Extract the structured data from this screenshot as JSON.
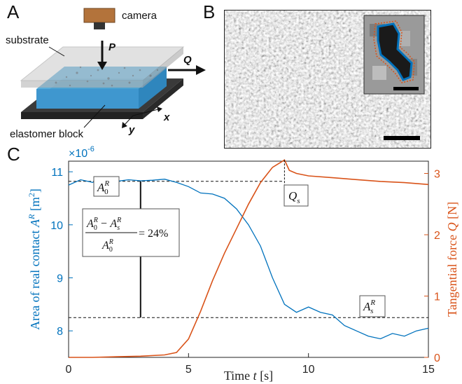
{
  "panels": {
    "a": {
      "letter": "A"
    },
    "b": {
      "letter": "B"
    },
    "c": {
      "letter": "C"
    }
  },
  "schematic": {
    "camera_label": "camera",
    "substrate_label": "substrate",
    "elastomer_label": "elastomer block",
    "force_normal": "P",
    "force_tangential": "Q",
    "axis_x": "x",
    "axis_y": "y"
  },
  "micrograph": {
    "has_scale_bar": true,
    "has_inset": true
  },
  "chart_data": {
    "type": "line",
    "xlabel": "Time t [s]",
    "ylabel_left": "Area of real contact A^R [m²]",
    "ylabel_right": "Tangential force Q [N]",
    "exponent_label": "×10",
    "exponent_power": "-6",
    "xlim": [
      0,
      15
    ],
    "ylim_left": [
      7.5,
      11.2
    ],
    "ylim_right": [
      0,
      3.2
    ],
    "xticks": [
      "0",
      "5",
      "10",
      "15"
    ],
    "yticks_left": [
      "8",
      "9",
      "10",
      "11"
    ],
    "yticks_right": [
      "0",
      "1",
      "2",
      "3"
    ],
    "colors": {
      "left": "#0072bd",
      "right": "#d95319"
    },
    "reference_lines": [
      {
        "axis": "left",
        "y": 10.82,
        "x_from": 0,
        "x_to": 9
      },
      {
        "axis": "left",
        "y": 8.25,
        "x_from": 0,
        "x_to": 15
      }
    ],
    "annotations": {
      "A0": "A",
      "A0_sup": "R",
      "A0_sub": "0",
      "As": "A",
      "As_sup": "R",
      "As_sub": "s",
      "Qs": "Q",
      "Qs_sub": "s",
      "ratio_value": "= 24%"
    },
    "series": [
      {
        "axis": "left",
        "x": [
          0,
          0.5,
          1,
          1.5,
          2,
          2.5,
          3,
          3.5,
          4,
          4.5,
          5,
          5.5,
          6,
          6.5,
          7,
          7.5,
          8,
          8.5,
          9,
          9.5,
          10,
          10.5,
          11,
          11.5,
          12,
          12.5,
          13,
          13.5,
          14,
          14.5,
          15
        ],
        "y": [
          10.75,
          10.85,
          10.8,
          10.88,
          10.82,
          10.85,
          10.83,
          10.84,
          10.86,
          10.8,
          10.72,
          10.6,
          10.58,
          10.5,
          10.3,
          10.0,
          9.6,
          9.0,
          8.5,
          8.35,
          8.45,
          8.35,
          8.3,
          8.1,
          8.0,
          7.9,
          7.85,
          7.95,
          7.9,
          8.0,
          8.05
        ]
      },
      {
        "axis": "right",
        "x": [
          0,
          1,
          2,
          3,
          4,
          4.5,
          5,
          5.5,
          6,
          6.5,
          7,
          7.5,
          8,
          8.5,
          9,
          9.2,
          9.5,
          10,
          11,
          12,
          13,
          14,
          15
        ],
        "y": [
          0.0,
          0.0,
          0.01,
          0.02,
          0.04,
          0.08,
          0.3,
          0.75,
          1.25,
          1.7,
          2.1,
          2.5,
          2.85,
          3.1,
          3.22,
          3.05,
          3.0,
          2.96,
          2.93,
          2.9,
          2.87,
          2.85,
          2.82
        ]
      }
    ]
  }
}
